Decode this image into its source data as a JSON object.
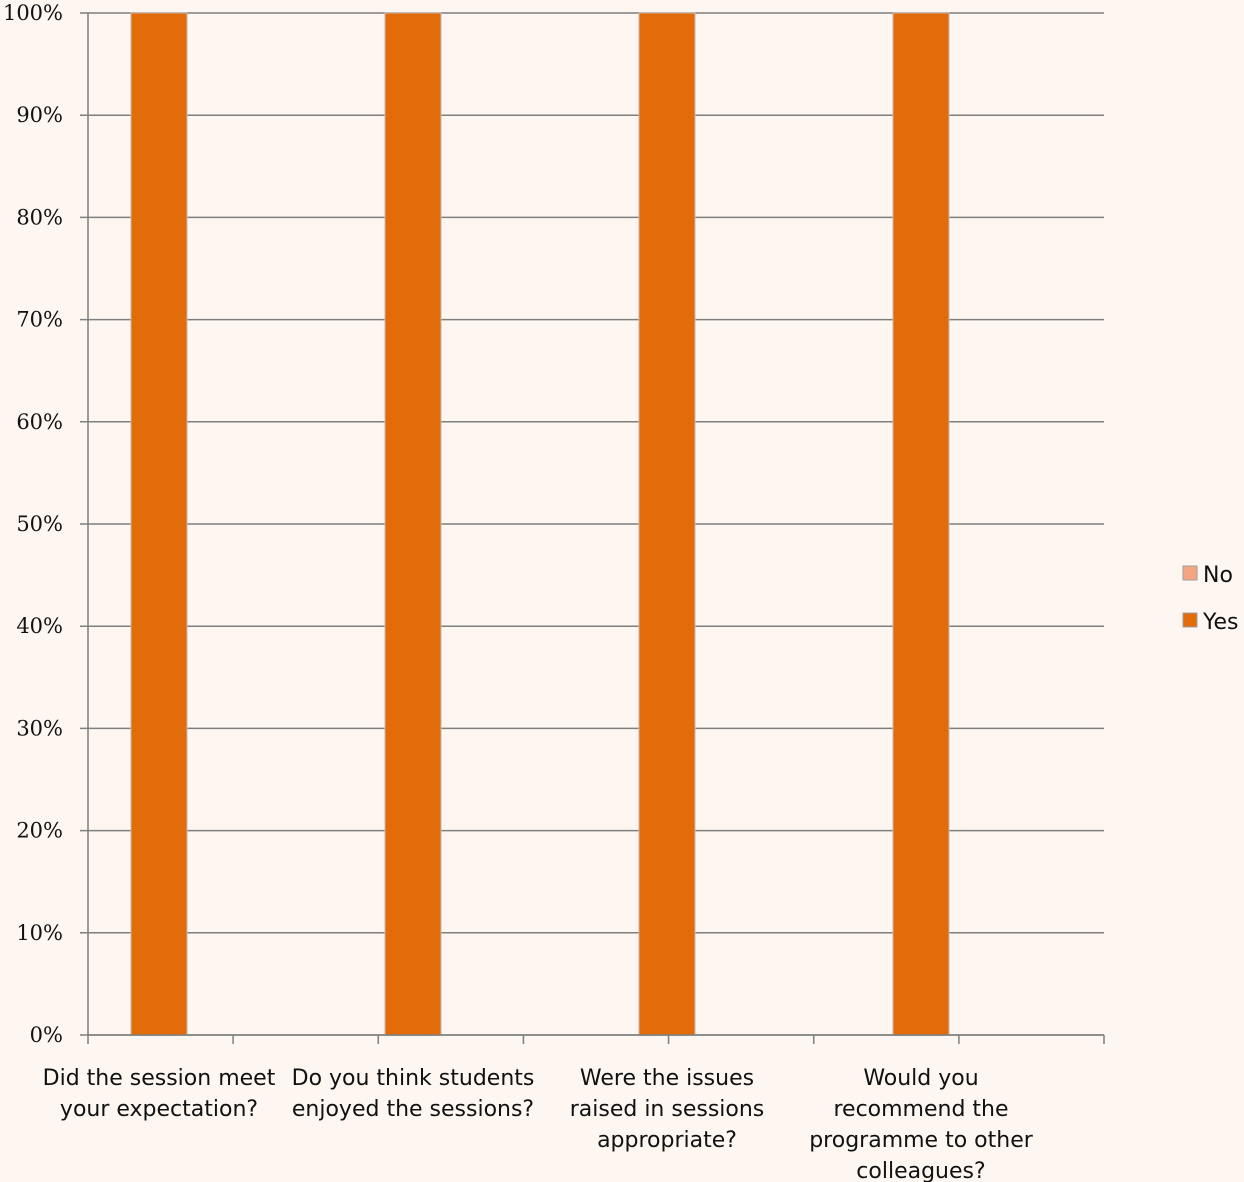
{
  "chart_data": {
    "type": "bar",
    "stacked": true,
    "categories": [
      [
        "Did the session meet",
        "your expectation?"
      ],
      [
        "Do you think students",
        "enjoyed the sessions?"
      ],
      [
        "Were the issues",
        "raised in sessions",
        "appropriate?"
      ],
      [
        "Would you",
        "recommend the",
        "programme to other",
        "colleagues?"
      ]
    ],
    "series": [
      {
        "name": "No",
        "values": [
          0,
          0,
          0,
          0
        ],
        "color": "#f4a582"
      },
      {
        "name": "Yes",
        "values": [
          100,
          100,
          100,
          100
        ],
        "color": "#e36c0a"
      }
    ],
    "ylim": [
      0,
      100
    ],
    "yticks": [
      "0%",
      "10%",
      "20%",
      "30%",
      "40%",
      "50%",
      "60%",
      "70%",
      "80%",
      "90%",
      "100%"
    ],
    "grid": true,
    "legend_position": "right"
  }
}
